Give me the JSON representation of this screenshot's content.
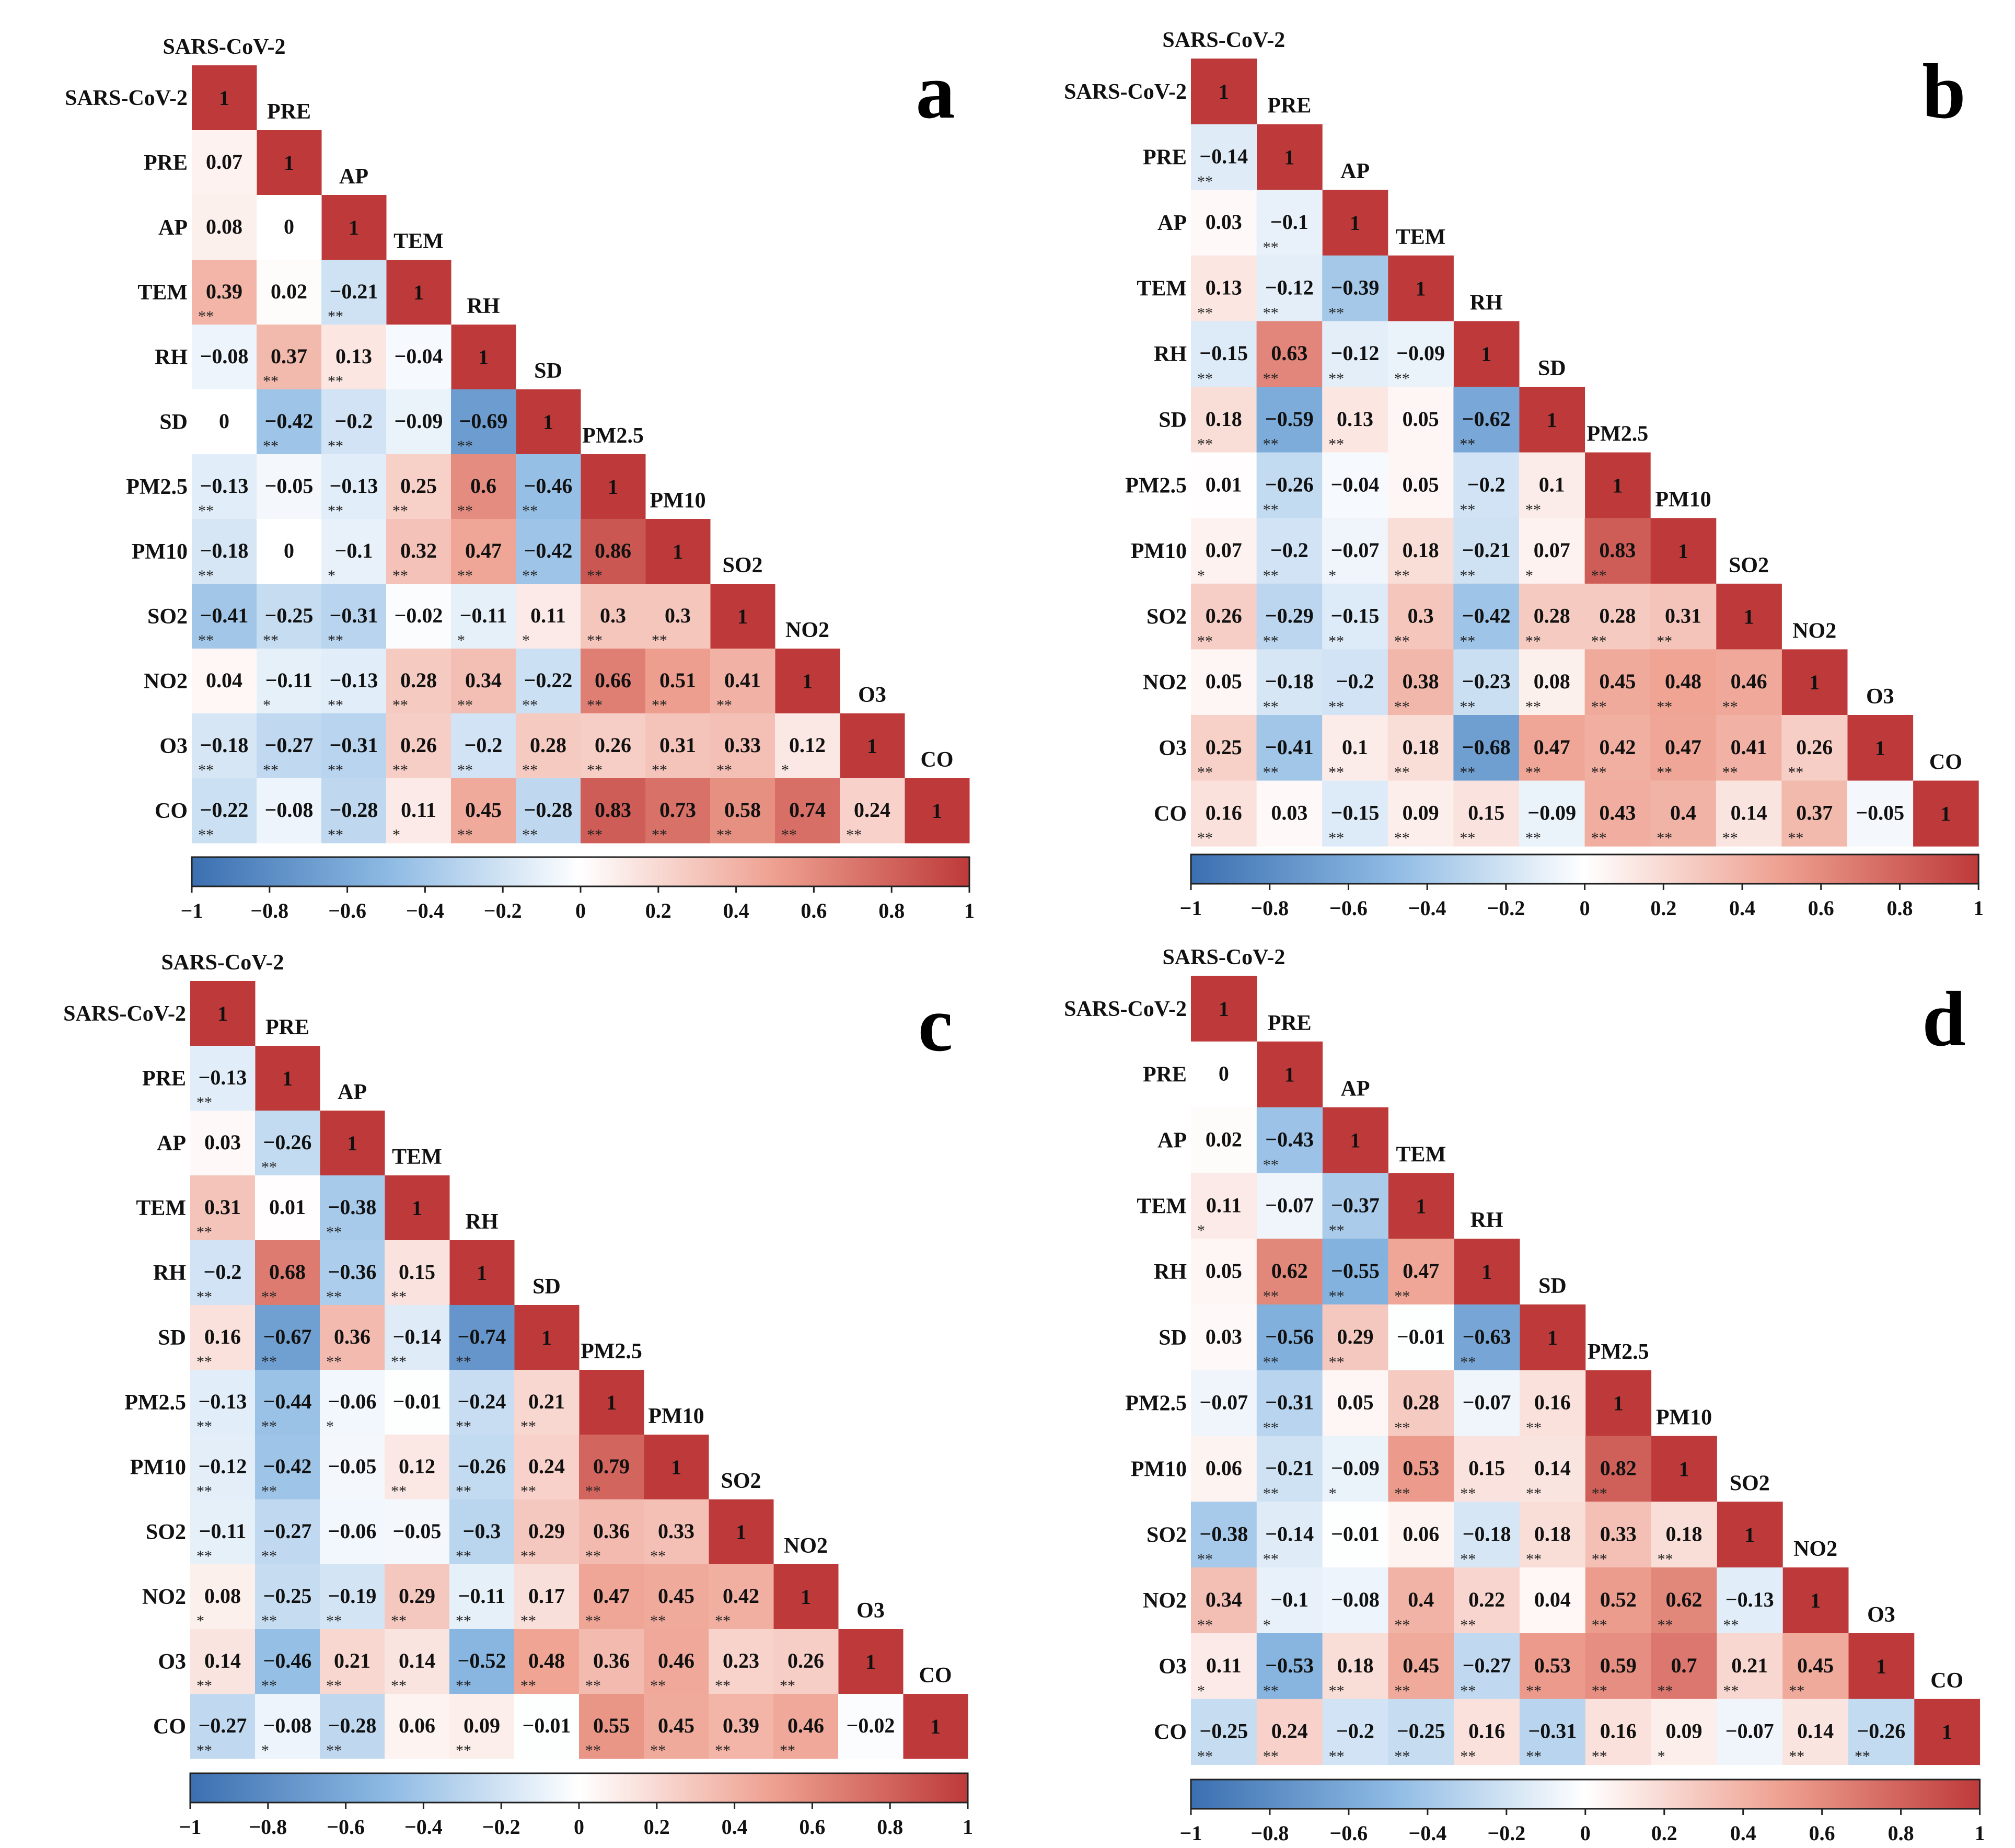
{
  "chart_data": [
    {
      "type": "heatmap",
      "panel_label": "a",
      "variables": [
        "SARS-CoV-2",
        "PRE",
        "AP",
        "TEM",
        "RH",
        "SD",
        "PM2.5",
        "PM10",
        "SO2",
        "NO2",
        "O3",
        "CO"
      ],
      "lower_triangle": [
        [],
        [
          0.07
        ],
        [
          0.08,
          0
        ],
        [
          0.39,
          0.02,
          -0.21
        ],
        [
          -0.08,
          0.37,
          0.13,
          -0.04
        ],
        [
          0,
          -0.42,
          -0.2,
          -0.09,
          -0.69
        ],
        [
          -0.13,
          -0.05,
          -0.13,
          0.25,
          0.6,
          -0.46
        ],
        [
          -0.18,
          0,
          -0.1,
          0.32,
          0.47,
          -0.42,
          0.86
        ],
        [
          -0.41,
          -0.25,
          -0.31,
          -0.02,
          -0.11,
          0.11,
          0.3,
          0.3
        ],
        [
          0.04,
          -0.11,
          -0.13,
          0.28,
          0.34,
          -0.22,
          0.66,
          0.51,
          0.41
        ],
        [
          -0.18,
          -0.27,
          -0.31,
          0.26,
          -0.2,
          0.28,
          0.26,
          0.31,
          0.33,
          0.12
        ],
        [
          -0.22,
          -0.08,
          -0.28,
          0.11,
          0.45,
          -0.28,
          0.83,
          0.73,
          0.58,
          0.74,
          0.24
        ]
      ],
      "significance": [
        [],
        [
          ""
        ],
        [
          "",
          ""
        ],
        [
          "**",
          "",
          "**"
        ],
        [
          "",
          "**",
          "**",
          ""
        ],
        [
          "",
          "**",
          "**",
          "",
          "**"
        ],
        [
          "**",
          "",
          "**",
          "**",
          "**",
          "**"
        ],
        [
          "**",
          "",
          "*",
          "**",
          "**",
          "**",
          "**"
        ],
        [
          "**",
          "**",
          "**",
          "",
          "*",
          "*",
          "**",
          "**"
        ],
        [
          "",
          "*",
          "**",
          "**",
          "**",
          "**",
          "**",
          "**",
          "**"
        ],
        [
          "**",
          "**",
          "**",
          "**",
          "**",
          "**",
          "**",
          "**",
          "**",
          "*"
        ],
        [
          "**",
          "",
          "**",
          "*",
          "**",
          "**",
          "**",
          "**",
          "**",
          "**",
          "**"
        ]
      ],
      "diagonal": 1,
      "colorbar": {
        "range": [
          -1,
          1
        ],
        "ticks": [
          "−1",
          "−0.8",
          "−0.6",
          "−0.4",
          "−0.2",
          "0",
          "0.2",
          "0.4",
          "0.6",
          "0.8",
          "1"
        ]
      }
    },
    {
      "type": "heatmap",
      "panel_label": "b",
      "variables": [
        "SARS-CoV-2",
        "PRE",
        "AP",
        "TEM",
        "RH",
        "SD",
        "PM2.5",
        "PM10",
        "SO2",
        "NO2",
        "O3",
        "CO"
      ],
      "lower_triangle": [
        [],
        [
          -0.14
        ],
        [
          0.03,
          -0.1
        ],
        [
          0.13,
          -0.12,
          -0.39
        ],
        [
          -0.15,
          0.63,
          -0.12,
          -0.09
        ],
        [
          0.18,
          -0.59,
          0.13,
          0.05,
          -0.62
        ],
        [
          0.01,
          -0.26,
          -0.04,
          0.05,
          -0.2,
          0.1
        ],
        [
          0.07,
          -0.2,
          -0.07,
          0.18,
          -0.21,
          0.07,
          0.83
        ],
        [
          0.26,
          -0.29,
          -0.15,
          0.3,
          -0.42,
          0.28,
          0.28,
          0.31
        ],
        [
          0.05,
          -0.18,
          -0.2,
          0.38,
          -0.23,
          0.08,
          0.45,
          0.48,
          0.46
        ],
        [
          0.25,
          -0.41,
          0.1,
          0.18,
          -0.68,
          0.47,
          0.42,
          0.47,
          0.41,
          0.26
        ],
        [
          0.16,
          0.03,
          -0.15,
          0.09,
          0.15,
          -0.09,
          0.43,
          0.4,
          0.14,
          0.37,
          -0.05
        ]
      ],
      "significance": [
        [],
        [
          "**"
        ],
        [
          "",
          "**"
        ],
        [
          "**",
          "**",
          "**"
        ],
        [
          "**",
          "**",
          "**",
          "**"
        ],
        [
          "**",
          "**",
          "**",
          "",
          "**"
        ],
        [
          "",
          "**",
          "",
          "",
          "**",
          "**"
        ],
        [
          "*",
          "**",
          "*",
          "**",
          "**",
          "*",
          "**"
        ],
        [
          "**",
          "**",
          "**",
          "**",
          "**",
          "**",
          "**",
          "**"
        ],
        [
          "",
          "**",
          "**",
          "**",
          "**",
          "**",
          "**",
          "**",
          "**"
        ],
        [
          "**",
          "**",
          "**",
          "**",
          "**",
          "**",
          "**",
          "**",
          "**",
          "**"
        ],
        [
          "**",
          "",
          "**",
          "**",
          "**",
          "**",
          "**",
          "**",
          "**",
          "**",
          ""
        ]
      ],
      "diagonal": 1,
      "colorbar": {
        "range": [
          -1,
          1
        ],
        "ticks": [
          "−1",
          "−0.8",
          "−0.6",
          "−0.4",
          "−0.2",
          "0",
          "0.2",
          "0.4",
          "0.6",
          "0.8",
          "1"
        ]
      }
    },
    {
      "type": "heatmap",
      "panel_label": "c",
      "variables": [
        "SARS-CoV-2",
        "PRE",
        "AP",
        "TEM",
        "RH",
        "SD",
        "PM2.5",
        "PM10",
        "SO2",
        "NO2",
        "O3",
        "CO"
      ],
      "lower_triangle": [
        [],
        [
          -0.13
        ],
        [
          0.03,
          -0.26
        ],
        [
          0.31,
          0.01,
          -0.38
        ],
        [
          -0.2,
          0.68,
          -0.36,
          0.15
        ],
        [
          0.16,
          -0.67,
          0.36,
          -0.14,
          -0.74
        ],
        [
          -0.13,
          -0.44,
          -0.06,
          -0.01,
          -0.24,
          0.21
        ],
        [
          -0.12,
          -0.42,
          -0.05,
          0.12,
          -0.26,
          0.24,
          0.79
        ],
        [
          -0.11,
          -0.27,
          -0.06,
          -0.05,
          -0.3,
          0.29,
          0.36,
          0.33
        ],
        [
          0.08,
          -0.25,
          -0.19,
          0.29,
          -0.11,
          0.17,
          0.47,
          0.45,
          0.42
        ],
        [
          0.14,
          -0.46,
          0.21,
          0.14,
          -0.52,
          0.48,
          0.36,
          0.46,
          0.23,
          0.26
        ],
        [
          -0.27,
          -0.08,
          -0.28,
          0.06,
          0.09,
          -0.01,
          0.55,
          0.45,
          0.39,
          0.46,
          -0.02
        ]
      ],
      "significance": [
        [],
        [
          "**"
        ],
        [
          "",
          "**"
        ],
        [
          "**",
          "",
          "**"
        ],
        [
          "**",
          "**",
          "**",
          "**"
        ],
        [
          "**",
          "**",
          "**",
          "**",
          "**"
        ],
        [
          "**",
          "**",
          "*",
          "",
          "**",
          "**"
        ],
        [
          "**",
          "**",
          "",
          "**",
          "**",
          "**",
          "**"
        ],
        [
          "**",
          "**",
          "",
          "",
          "**",
          "**",
          "**",
          "**"
        ],
        [
          "*",
          "**",
          "**",
          "**",
          "**",
          "**",
          "**",
          "**",
          "**"
        ],
        [
          "**",
          "**",
          "**",
          "**",
          "**",
          "**",
          "**",
          "**",
          "**",
          "**"
        ],
        [
          "**",
          "*",
          "**",
          "",
          "**",
          "",
          "**",
          "**",
          "**",
          "**",
          ""
        ]
      ],
      "diagonal": 1,
      "colorbar": {
        "range": [
          -1,
          1
        ],
        "ticks": [
          "−1",
          "−0.8",
          "−0.6",
          "−0.4",
          "−0.2",
          "0",
          "0.2",
          "0.4",
          "0.6",
          "0.8",
          "1"
        ]
      }
    },
    {
      "type": "heatmap",
      "panel_label": "d",
      "variables": [
        "SARS-CoV-2",
        "PRE",
        "AP",
        "TEM",
        "RH",
        "SD",
        "PM2.5",
        "PM10",
        "SO2",
        "NO2",
        "O3",
        "CO"
      ],
      "lower_triangle": [
        [],
        [
          0
        ],
        [
          0.02,
          -0.43
        ],
        [
          0.11,
          -0.07,
          -0.37
        ],
        [
          0.05,
          0.62,
          -0.55,
          0.47
        ],
        [
          0.03,
          -0.56,
          0.29,
          -0.01,
          -0.63
        ],
        [
          -0.07,
          -0.31,
          0.05,
          0.28,
          -0.07,
          0.16
        ],
        [
          0.06,
          -0.21,
          -0.09,
          0.53,
          0.15,
          0.14,
          0.82
        ],
        [
          -0.38,
          -0.14,
          -0.01,
          0.06,
          -0.18,
          0.18,
          0.33,
          0.18
        ],
        [
          0.34,
          -0.1,
          -0.08,
          0.4,
          0.22,
          0.04,
          0.52,
          0.62,
          -0.13
        ],
        [
          0.11,
          -0.53,
          0.18,
          0.45,
          -0.27,
          0.53,
          0.59,
          0.7,
          0.21,
          0.45
        ],
        [
          -0.25,
          0.24,
          -0.2,
          -0.25,
          0.16,
          -0.31,
          0.16,
          0.09,
          -0.07,
          0.14,
          -0.26
        ]
      ],
      "significance": [
        [],
        [
          ""
        ],
        [
          "",
          "**"
        ],
        [
          "*",
          "",
          "**"
        ],
        [
          "",
          "**",
          "**",
          "**"
        ],
        [
          "",
          "**",
          "**",
          "",
          "**"
        ],
        [
          "",
          "**",
          "",
          "**",
          "",
          "**"
        ],
        [
          "",
          "**",
          "*",
          "**",
          "**",
          "**",
          "**"
        ],
        [
          "**",
          "**",
          "",
          "",
          "**",
          "**",
          "**",
          "**"
        ],
        [
          "**",
          "*",
          "",
          "**",
          "**",
          "",
          "**",
          "**",
          "**"
        ],
        [
          "*",
          "**",
          "**",
          "**",
          "**",
          "**",
          "**",
          "**",
          "**",
          "**"
        ],
        [
          "**",
          "**",
          "**",
          "**",
          "**",
          "**",
          "**",
          "*",
          "",
          "**",
          "**"
        ]
      ],
      "diagonal": 1,
      "colorbar": {
        "range": [
          -1,
          1
        ],
        "ticks": [
          "−1",
          "−0.8",
          "−0.6",
          "−0.4",
          "−0.2",
          "0",
          "0.2",
          "0.4",
          "0.6",
          "0.8",
          "1"
        ]
      }
    }
  ]
}
